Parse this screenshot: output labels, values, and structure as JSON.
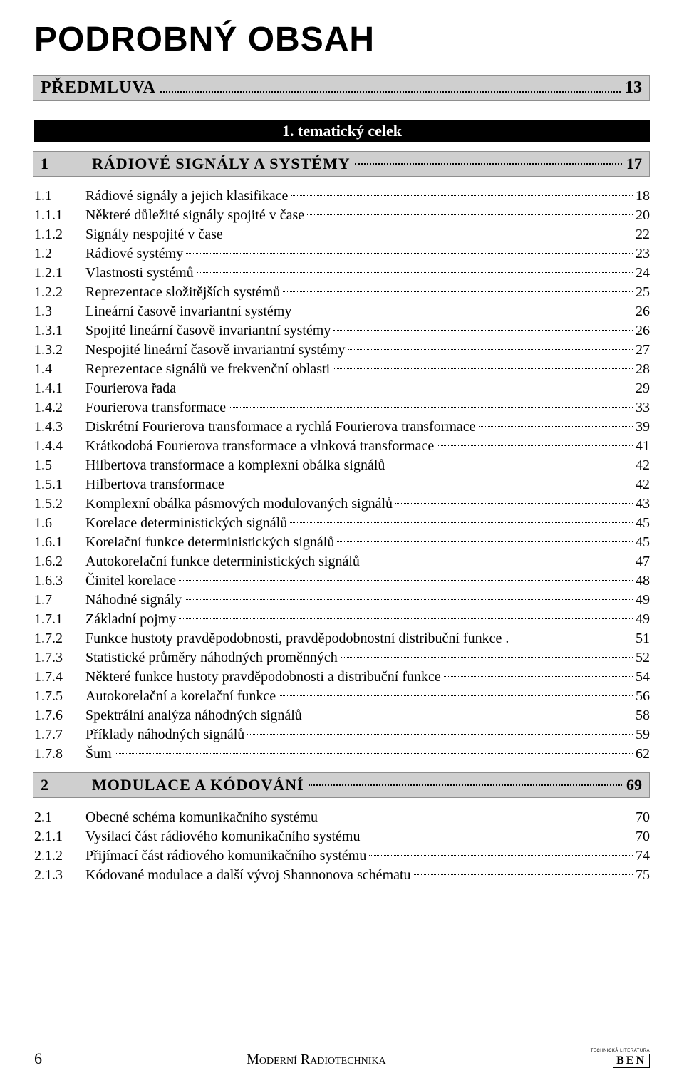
{
  "colors": {
    "page_bg": "#ffffff",
    "text": "#000000",
    "section_bg": "#cfcfcf",
    "section_border": "#8e8e8e",
    "tematic_bg": "#000000",
    "tematic_text": "#ffffff"
  },
  "typography": {
    "main_title_family": "Arial Black / sans-serif",
    "main_title_size_pt": 36,
    "main_title_weight": "900",
    "section_heading_family": "Times New Roman / serif",
    "section_heading_size_pt": 16,
    "body_family": "Times New Roman / serif",
    "body_size_pt": 14,
    "footer_size_pt": 14
  },
  "main_title": "PODROBNÝ OBSAH",
  "predmluva": {
    "label": "PŘEDMLUVA",
    "page": "13"
  },
  "tematic_label": "1. tematický celek",
  "section1": {
    "num": "1",
    "title": "RÁDIOVÉ SIGNÁLY A SYSTÉMY",
    "page": "17"
  },
  "section2": {
    "num": "2",
    "title": "MODULACE A KÓDOVÁNÍ",
    "page": "69"
  },
  "toc1": [
    {
      "num": "1.1",
      "title": "Rádiové signály a jejich klasifikace",
      "page": "18",
      "dots": true
    },
    {
      "num": "1.1.1",
      "title": "Některé důležité signály spojité v čase",
      "page": "20",
      "dots": true
    },
    {
      "num": "1.1.2",
      "title": "Signály nespojité v čase",
      "page": "22",
      "dots": true
    },
    {
      "num": "1.2",
      "title": "Rádiové systémy",
      "page": "23",
      "dots": true
    },
    {
      "num": "1.2.1",
      "title": "Vlastnosti systémů",
      "page": "24",
      "dots": true
    },
    {
      "num": "1.2.2",
      "title": "Reprezentace složitějších systémů",
      "page": "25",
      "dots": true
    },
    {
      "num": "1.3",
      "title": "Lineární časově invariantní systémy",
      "page": "26",
      "dots": true
    },
    {
      "num": "1.3.1",
      "title": "Spojité lineární časově invariantní systémy",
      "page": "26",
      "dots": true
    },
    {
      "num": "1.3.2",
      "title": "Nespojité lineární časově invariantní systémy",
      "page": "27",
      "dots": true
    },
    {
      "num": "1.4",
      "title": "Reprezentace signálů ve frekvenční oblasti",
      "page": "28",
      "dots": true
    },
    {
      "num": "1.4.1",
      "title": "Fourierova řada",
      "page": "29",
      "dots": true
    },
    {
      "num": "1.4.2",
      "title": "Fourierova transformace",
      "page": "33",
      "dots": true
    },
    {
      "num": "1.4.3",
      "title": "Diskrétní Fourierova transformace a rychlá Fourierova transformace",
      "page": "39",
      "dots": true
    },
    {
      "num": "1.4.4",
      "title": "Krátkodobá Fourierova transformace a vlnková transformace",
      "page": "41",
      "dots": true
    },
    {
      "num": "1.5",
      "title": "Hilbertova transformace a komplexní obálka signálů",
      "page": "42",
      "dots": true
    },
    {
      "num": "1.5.1",
      "title": "Hilbertova transformace",
      "page": "42",
      "dots": true
    },
    {
      "num": "1.5.2",
      "title": "Komplexní obálka pásmových modulovaných signálů",
      "page": "43",
      "dots": true
    },
    {
      "num": "1.6",
      "title": "Korelace deterministických signálů",
      "page": "45",
      "dots": true
    },
    {
      "num": "1.6.1",
      "title": "Korelační funkce deterministických signálů",
      "page": "45",
      "dots": true
    },
    {
      "num": "1.6.2",
      "title": "Autokorelační funkce deterministických signálů",
      "page": "47",
      "dots": true
    },
    {
      "num": "1.6.3",
      "title": "Činitel korelace",
      "page": "48",
      "dots": true
    },
    {
      "num": "1.7",
      "title": "Náhodné signály",
      "page": "49",
      "dots": true
    },
    {
      "num": "1.7.1",
      "title": "Základní pojmy",
      "page": "49",
      "dots": true
    },
    {
      "num": "1.7.2",
      "title": "Funkce hustoty pravděpodobnosti, pravděpodobnostní distribuční funkce .",
      "page": "51",
      "dots": false
    },
    {
      "num": "1.7.3",
      "title": "Statistické průměry náhodných proměnných",
      "page": "52",
      "dots": true
    },
    {
      "num": "1.7.4",
      "title": "Některé funkce hustoty pravděpodobnosti a distribuční funkce",
      "page": "54",
      "dots": true
    },
    {
      "num": "1.7.5",
      "title": "Autokorelační a korelační funkce",
      "page": "56",
      "dots": true
    },
    {
      "num": "1.7.6",
      "title": "Spektrální analýza náhodných signálů",
      "page": "58",
      "dots": true
    },
    {
      "num": "1.7.7",
      "title": "Příklady náhodných signálů",
      "page": "59",
      "dots": true
    },
    {
      "num": "1.7.8",
      "title": "Šum",
      "page": "62",
      "dots": true
    }
  ],
  "toc2": [
    {
      "num": "2.1",
      "title": "Obecné schéma komunikačního systému",
      "page": "70",
      "dots": true
    },
    {
      "num": "2.1.1",
      "title": "Vysílací část rádiového komunikačního systému",
      "page": "70",
      "dots": true
    },
    {
      "num": "2.1.2",
      "title": "Přijímací část rádiového komunikačního systému",
      "page": "74",
      "dots": true
    },
    {
      "num": "2.1.3",
      "title": "Kódované modulace a další vývoj Shannonova schématu",
      "page": "75",
      "dots": true
    }
  ],
  "footer": {
    "page_number": "6",
    "center_text": "Moderní Radiotechnika",
    "logo_top": "TECHNICKÁ LITERATURA",
    "logo_text": "BEN"
  }
}
